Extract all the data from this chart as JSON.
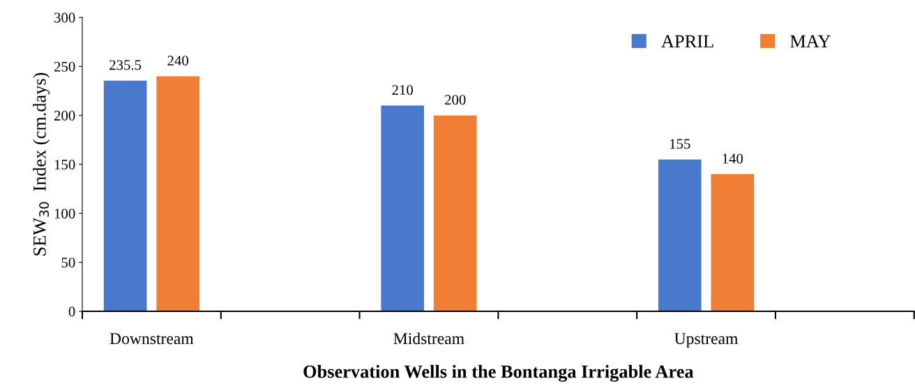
{
  "chart_data": {
    "type": "bar",
    "xlabel": "Observation Wells in the Bontanga Irrigable Area",
    "ylabel": "SEW$_{30}$  Index (cm.days)",
    "categories": [
      "Downstream",
      null,
      "Midstream",
      null,
      "Upstream",
      null
    ],
    "series": [
      {
        "name": "APRIL",
        "color": "#4a78cc",
        "values": [
          235.5,
          null,
          210,
          null,
          155,
          null
        ]
      },
      {
        "name": "MAY",
        "color": "#f07f35",
        "values": [
          240,
          null,
          200,
          null,
          140,
          null
        ]
      }
    ],
    "ylim": [
      0,
      300
    ],
    "yticks": [
      0,
      50,
      100,
      150,
      200,
      250,
      300
    ],
    "grid": false,
    "legend": "top right",
    "data_labels": true
  }
}
